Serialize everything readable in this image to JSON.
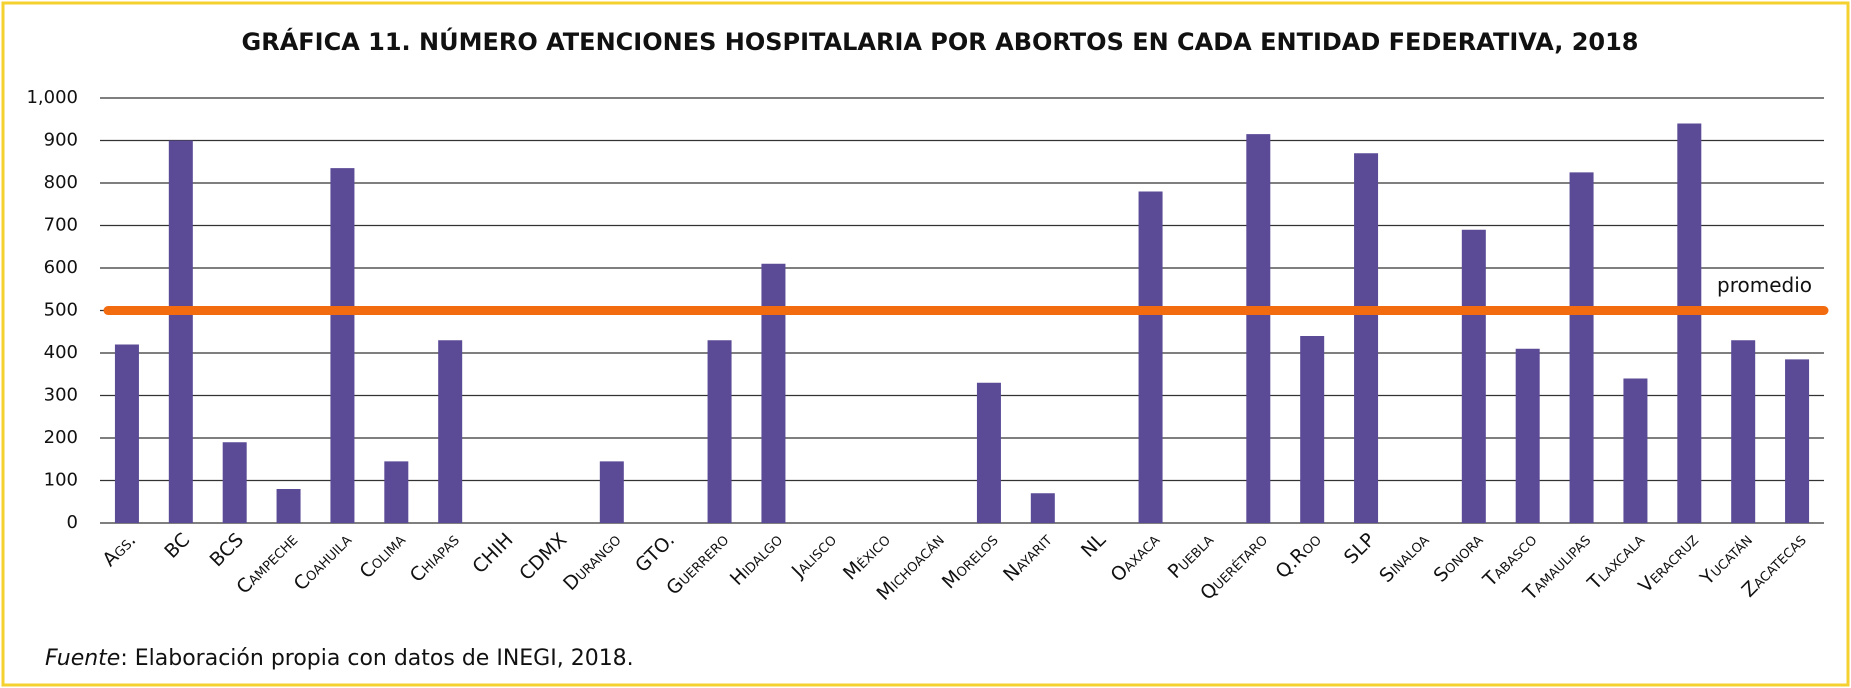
{
  "chart_data": {
    "type": "bar",
    "title": "GRÁFICA 11. NÚMERO ATENCIONES HOSPITALARIA POR ABORTOS EN CADA ENTIDAD FEDERATIVA, 2018",
    "categories": [
      "Ags.",
      "BC",
      "BCS",
      "Campeche",
      "Coahuila",
      "Colima",
      "Chiapas",
      "CHIH",
      "CDMX",
      "Durango",
      "GTO.",
      "Guerrero",
      "Hidalgo",
      "Jalisco",
      "México",
      "Michoacán",
      "Morelos",
      "Nayarit",
      "NL",
      "Oaxaca",
      "Puebla",
      "Querétaro",
      "Q.Roo",
      "SLP",
      "Sinaloa",
      "Sonora",
      "Tabasco",
      "Tamaulipas",
      "Tlaxcala",
      "Veracruz",
      "Yucatán",
      "Zacatecas"
    ],
    "values": [
      420,
      900,
      190,
      80,
      835,
      145,
      430,
      0,
      0,
      145,
      0,
      430,
      610,
      0,
      0,
      0,
      330,
      70,
      0,
      780,
      0,
      915,
      440,
      870,
      0,
      690,
      410,
      825,
      340,
      940,
      430,
      385
    ],
    "color": "#5b4a96",
    "ylim": [
      0,
      1000
    ],
    "yticks": [
      0,
      100,
      200,
      300,
      400,
      500,
      600,
      700,
      800,
      900,
      {
        "value": 1000,
        "label": "1,000"
      }
    ],
    "grid": true,
    "average": {
      "label": "promedio",
      "value": 500,
      "color": "#f26b0f"
    },
    "source": {
      "label": "Fuente",
      "text": ": Elaboración propia con datos de INEGI, 2018."
    }
  }
}
